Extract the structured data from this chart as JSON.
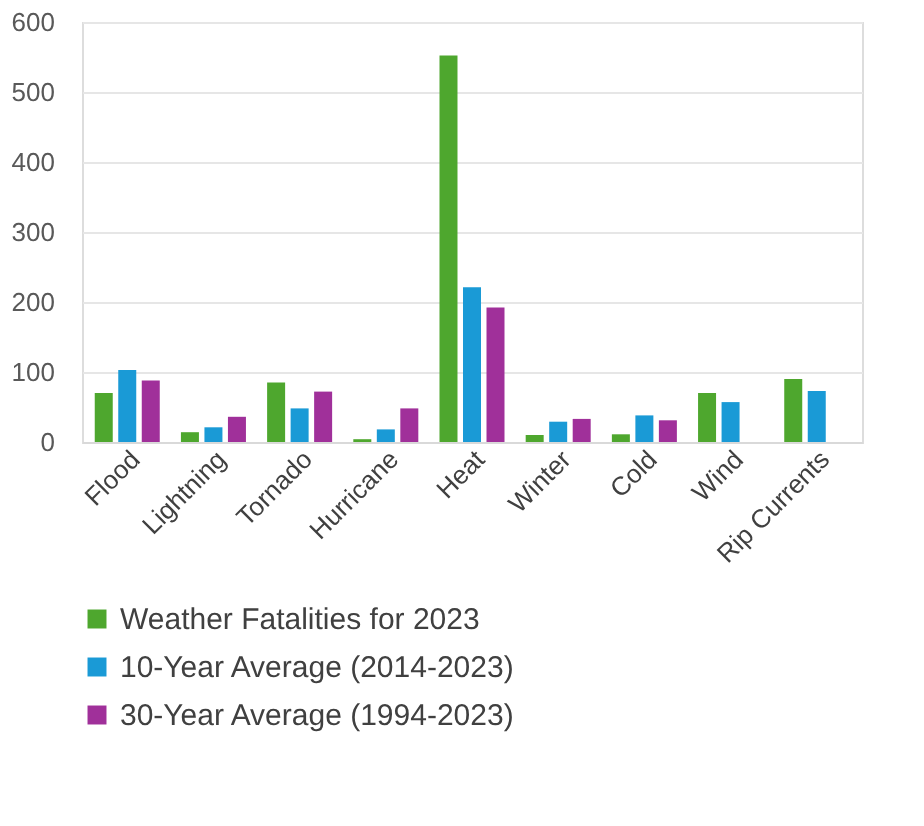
{
  "chart_data": {
    "type": "bar",
    "categories": [
      "Flood",
      "Lightning",
      "Tornado",
      "Hurricane",
      "Heat",
      "Winter",
      "Cold",
      "Wind",
      "Rip Currents"
    ],
    "series": [
      {
        "name": "Weather Fatalities for 2023",
        "color": "#4ea72e",
        "values": [
          70,
          14,
          85,
          4,
          552,
          10,
          11,
          70,
          90
        ]
      },
      {
        "name": "10-Year Average (2014-2023)",
        "color": "#1a9ad6",
        "values": [
          103,
          21,
          48,
          18,
          221,
          29,
          38,
          57,
          73
        ]
      },
      {
        "name": "30-Year Average (1994-2023)",
        "color": "#a0309a",
        "values": [
          88,
          36,
          72,
          48,
          192,
          33,
          31,
          null,
          null
        ]
      }
    ],
    "ylim": [
      0,
      600
    ],
    "yticks": [
      0,
      100,
      200,
      300,
      400,
      500,
      600
    ],
    "grid": "y",
    "legend": "bottom"
  }
}
